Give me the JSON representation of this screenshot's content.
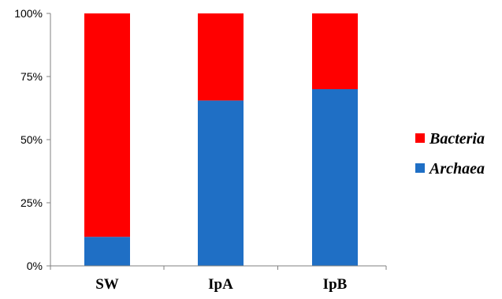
{
  "chart_data": {
    "type": "bar",
    "stacked": true,
    "categories": [
      "SW",
      "IpA",
      "IpB"
    ],
    "series": [
      {
        "name": "Archaea",
        "values": [
          11.5,
          65.5,
          70
        ],
        "color": "#1f6fc5"
      },
      {
        "name": "Bacteria",
        "values": [
          88.5,
          34.5,
          30
        ],
        "color": "#ff0000"
      }
    ],
    "yticks": [
      "0%",
      "25%",
      "50%",
      "75%",
      "100%"
    ],
    "ylim": [
      0,
      100
    ],
    "legend_position": "right",
    "grid": false
  }
}
